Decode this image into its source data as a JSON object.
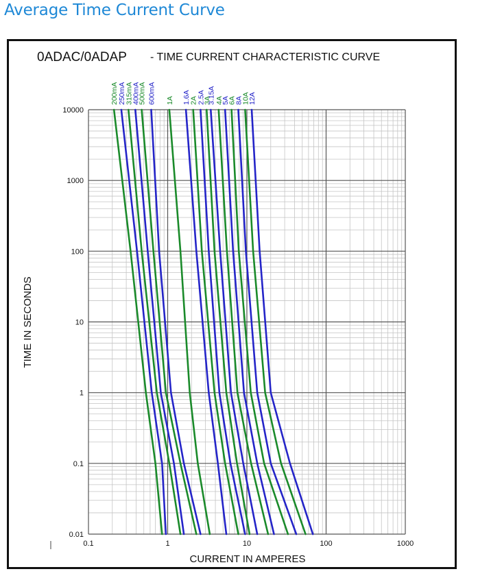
{
  "page": {
    "heading": "Average Time Current Curve"
  },
  "chart_data": {
    "type": "line",
    "title_part1": "0ADAC/0ADAP",
    "title_part2": "- TIME CURRENT CHARACTERISTIC CURVE",
    "xlabel": "CURRENT IN AMPERES",
    "ylabel": "TIME IN SECONDS",
    "x_scale": "log",
    "y_scale": "log",
    "xlim": [
      0.1,
      1000
    ],
    "ylim": [
      0.01,
      10000
    ],
    "x_tick_labels": [
      "0.1",
      "1",
      "10",
      "100",
      "1000"
    ],
    "y_tick_labels": [
      "10000",
      "1000",
      "100",
      "10",
      "1",
      "0.1",
      "0.01"
    ],
    "grid": true,
    "colors": {
      "green": "#1a8a2a",
      "blue": "#2424c8",
      "title_blue": "#1e88d6"
    },
    "series": [
      {
        "name": "200mA",
        "color": "green",
        "points": [
          [
            0.21,
            10000
          ],
          [
            0.34,
            100
          ],
          [
            0.53,
            1
          ],
          [
            0.7,
            0.1
          ],
          [
            0.85,
            0.01
          ]
        ]
      },
      {
        "name": "250mA",
        "color": "blue",
        "points": [
          [
            0.26,
            10000
          ],
          [
            0.41,
            100
          ],
          [
            0.63,
            1
          ],
          [
            0.85,
            0.1
          ],
          [
            0.95,
            0.01
          ]
        ]
      },
      {
        "name": "315mA",
        "color": "green",
        "points": [
          [
            0.32,
            10000
          ],
          [
            0.47,
            100
          ],
          [
            0.73,
            1
          ],
          [
            1.05,
            0.1
          ],
          [
            1.45,
            0.01
          ]
        ]
      },
      {
        "name": "400mA",
        "color": "blue",
        "points": [
          [
            0.39,
            10000
          ],
          [
            0.56,
            100
          ],
          [
            0.82,
            1
          ],
          [
            1.2,
            0.1
          ],
          [
            1.6,
            0.01
          ]
        ]
      },
      {
        "name": "500mA",
        "color": "green",
        "points": [
          [
            0.47,
            10000
          ],
          [
            0.66,
            100
          ],
          [
            0.95,
            1
          ],
          [
            1.45,
            0.1
          ],
          [
            2.3,
            0.01
          ]
        ]
      },
      {
        "name": "600mA",
        "color": "blue",
        "points": [
          [
            0.62,
            10000
          ],
          [
            0.78,
            100
          ],
          [
            1.1,
            1
          ],
          [
            1.6,
            0.1
          ],
          [
            2.6,
            0.01
          ]
        ]
      },
      {
        "name": "1A",
        "color": "green",
        "points": [
          [
            1.05,
            10000
          ],
          [
            1.45,
            100
          ],
          [
            1.9,
            1
          ],
          [
            2.4,
            0.1
          ],
          [
            3.4,
            0.01
          ]
        ]
      },
      {
        "name": "1.6A",
        "color": "blue",
        "points": [
          [
            1.7,
            10000
          ],
          [
            2.3,
            100
          ],
          [
            3.3,
            1
          ],
          [
            4.3,
            0.1
          ],
          [
            5.5,
            0.01
          ]
        ]
      },
      {
        "name": "2A",
        "color": "green",
        "points": [
          [
            2.1,
            10000
          ],
          [
            2.7,
            100
          ],
          [
            3.9,
            1
          ],
          [
            5.3,
            0.1
          ],
          [
            7.8,
            0.01
          ]
        ]
      },
      {
        "name": "2.5A",
        "color": "blue",
        "points": [
          [
            2.6,
            10000
          ],
          [
            3.3,
            100
          ],
          [
            4.5,
            1
          ],
          [
            6.2,
            0.1
          ],
          [
            9.5,
            0.01
          ]
        ]
      },
      {
        "name": "3A",
        "color": "green",
        "points": [
          [
            3.1,
            10000
          ],
          [
            3.9,
            100
          ],
          [
            5.5,
            1
          ],
          [
            7.5,
            0.1
          ],
          [
            10.8,
            0.01
          ]
        ]
      },
      {
        "name": "3.15A",
        "color": "blue",
        "points": [
          [
            3.5,
            10000
          ],
          [
            4.6,
            100
          ],
          [
            6.3,
            1
          ],
          [
            9.0,
            0.1
          ],
          [
            13.5,
            0.01
          ]
        ]
      },
      {
        "name": "4A",
        "color": "green",
        "points": [
          [
            4.4,
            10000
          ],
          [
            5.6,
            100
          ],
          [
            7.6,
            1
          ],
          [
            11.3,
            0.1
          ],
          [
            18.5,
            0.01
          ]
        ]
      },
      {
        "name": "5A",
        "color": "blue",
        "points": [
          [
            5.3,
            10000
          ],
          [
            6.7,
            100
          ],
          [
            9.2,
            1
          ],
          [
            13.5,
            0.1
          ],
          [
            22,
            0.01
          ]
        ]
      },
      {
        "name": "6A",
        "color": "green",
        "points": [
          [
            6.4,
            10000
          ],
          [
            7.9,
            100
          ],
          [
            11.2,
            1
          ],
          [
            16.5,
            0.1
          ],
          [
            33,
            0.01
          ]
        ]
      },
      {
        "name": "8A",
        "color": "blue",
        "points": [
          [
            7.8,
            10000
          ],
          [
            9.7,
            100
          ],
          [
            13.5,
            1
          ],
          [
            20,
            0.1
          ],
          [
            42,
            0.01
          ]
        ]
      },
      {
        "name": "10A",
        "color": "green",
        "points": [
          [
            9.5,
            10000
          ],
          [
            12,
            100
          ],
          [
            17,
            1
          ],
          [
            27,
            0.1
          ],
          [
            55,
            0.01
          ]
        ]
      },
      {
        "name": "12A",
        "color": "blue",
        "points": [
          [
            11.5,
            10000
          ],
          [
            14.5,
            100
          ],
          [
            20,
            1
          ],
          [
            35,
            0.1
          ],
          [
            68,
            0.01
          ]
        ]
      }
    ]
  }
}
